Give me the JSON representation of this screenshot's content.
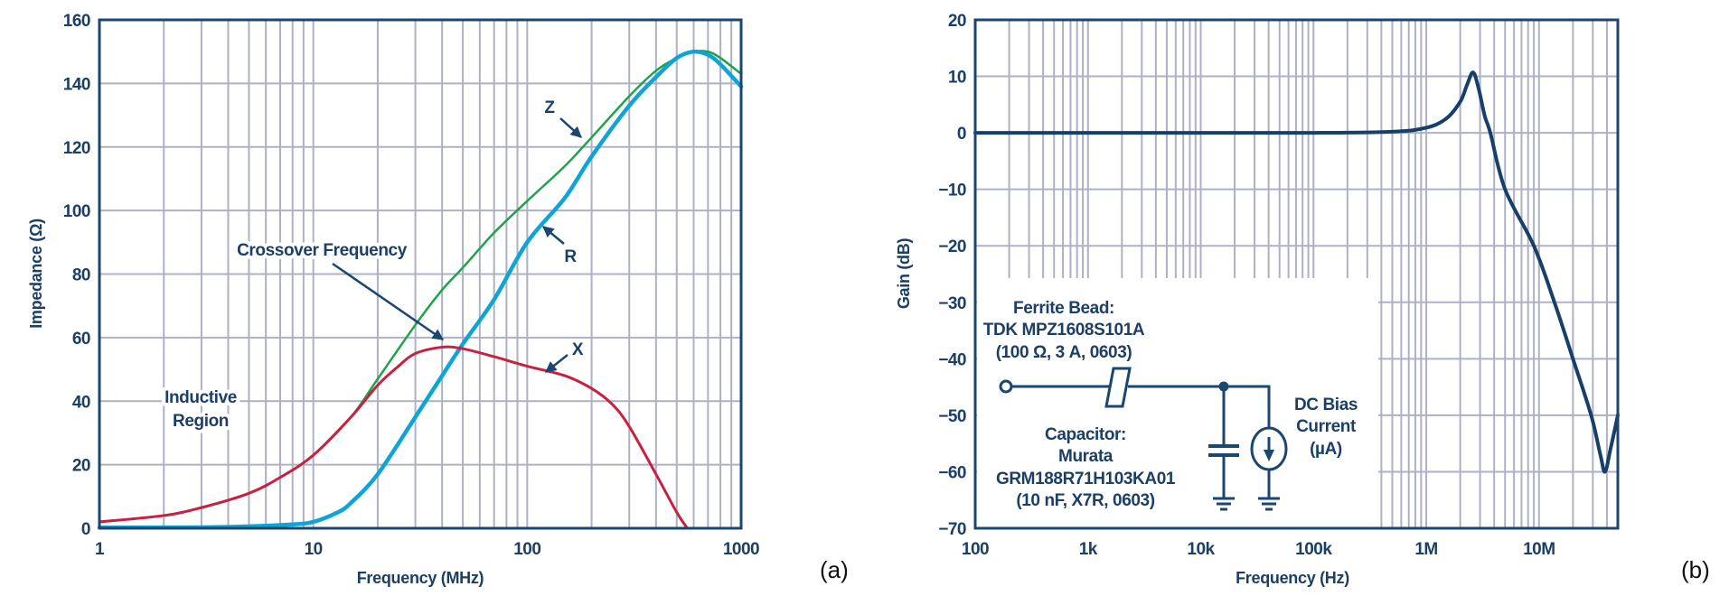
{
  "chart_data": [
    {
      "type": "line",
      "panel_label": "(a)",
      "xlabel": "Frequency (MHz)",
      "ylabel": "Impedance (Ω)",
      "xscale": "log",
      "xlim": [
        1,
        1000
      ],
      "ylim": [
        0,
        160
      ],
      "grid": true,
      "x_ticks": [
        "1",
        "10",
        "100",
        "1000"
      ],
      "y_ticks": [
        "0",
        "20",
        "40",
        "60",
        "80",
        "100",
        "120",
        "140",
        "160"
      ],
      "series": [
        {
          "name": "Z",
          "color": "#1fa34a",
          "points": [
            [
              1,
              2
            ],
            [
              2,
              4
            ],
            [
              3,
              6.5
            ],
            [
              5,
              11
            ],
            [
              7,
              16
            ],
            [
              10,
              23
            ],
            [
              15,
              35
            ],
            [
              20,
              47
            ],
            [
              30,
              64
            ],
            [
              40,
              75
            ],
            [
              50,
              82
            ],
            [
              70,
              93
            ],
            [
              100,
              103
            ],
            [
              150,
              114
            ],
            [
              200,
              123
            ],
            [
              300,
              136
            ],
            [
              400,
              144
            ],
            [
              500,
              148
            ],
            [
              600,
              150
            ],
            [
              700,
              150
            ],
            [
              800,
              148
            ],
            [
              1000,
              143
            ]
          ]
        },
        {
          "name": "R",
          "color": "#0ea5d6",
          "points": [
            [
              1,
              0.2
            ],
            [
              3,
              0.3
            ],
            [
              5,
              0.6
            ],
            [
              8,
              1.2
            ],
            [
              10,
              2
            ],
            [
              13,
              5
            ],
            [
              15,
              8
            ],
            [
              20,
              17
            ],
            [
              30,
              35
            ],
            [
              40,
              48
            ],
            [
              50,
              58
            ],
            [
              70,
              72
            ],
            [
              100,
              90
            ],
            [
              150,
              104
            ],
            [
              200,
              117
            ],
            [
              300,
              133
            ],
            [
              400,
              142
            ],
            [
              500,
              148
            ],
            [
              600,
              150
            ],
            [
              700,
              149
            ],
            [
              800,
              146
            ],
            [
              1000,
              139
            ]
          ]
        },
        {
          "name": "X",
          "color": "#c8203f",
          "points": [
            [
              1,
              2
            ],
            [
              2,
              4
            ],
            [
              3,
              6.5
            ],
            [
              5,
              11
            ],
            [
              7,
              16
            ],
            [
              10,
              23
            ],
            [
              15,
              35
            ],
            [
              20,
              45
            ],
            [
              25,
              51
            ],
            [
              30,
              55
            ],
            [
              40,
              57
            ],
            [
              50,
              56.5
            ],
            [
              70,
              54
            ],
            [
              100,
              51
            ],
            [
              150,
              48
            ],
            [
              200,
              44
            ],
            [
              250,
              39
            ],
            [
              300,
              32
            ],
            [
              400,
              17
            ],
            [
              500,
              5
            ],
            [
              560,
              0
            ]
          ]
        }
      ],
      "annotations": {
        "crossover": "Crossover Frequency",
        "inductive_line1": "Inductive",
        "inductive_line2": "Region",
        "z_label": "Z",
        "r_label": "R",
        "x_label": "X"
      }
    },
    {
      "type": "line",
      "panel_label": "(b)",
      "xlabel": "Frequency (Hz)",
      "ylabel": "Gain (dB)",
      "xscale": "log",
      "xlim": [
        100,
        50000000
      ],
      "ylim": [
        -70,
        20
      ],
      "grid": true,
      "x_ticks": [
        "100",
        "1k",
        "10k",
        "100k",
        "1M",
        "10M"
      ],
      "y_ticks": [
        "−70",
        "−60",
        "−50",
        "−40",
        "−30",
        "−20",
        "−10",
        "0",
        "10",
        "20"
      ],
      "series": [
        {
          "color": "#163f6a",
          "points": [
            [
              100,
              0
            ],
            [
              1000,
              0
            ],
            [
              10000,
              0
            ],
            [
              100000,
              0
            ],
            [
              500000,
              0.2
            ],
            [
              1000000,
              0.9
            ],
            [
              1500000,
              2.5
            ],
            [
              2000000,
              5.5
            ],
            [
              2300000,
              8.5
            ],
            [
              2600000,
              10.7
            ],
            [
              2900000,
              8
            ],
            [
              3300000,
              3
            ],
            [
              3700000,
              0
            ],
            [
              5000000,
              -10
            ],
            [
              9000000,
              -20
            ],
            [
              13700000,
              -30
            ],
            [
              20000000,
              -40
            ],
            [
              29000000,
              -50
            ],
            [
              35000000,
              -57
            ],
            [
              38500000,
              -60
            ],
            [
              43000000,
              -56
            ],
            [
              50000000,
              -50
            ]
          ]
        }
      ],
      "inset": {
        "bead_line1": "Ferrite Bead:",
        "bead_line2": "TDK MPZ1608S101A",
        "bead_line3": "(100 Ω, 3 A, 0603)",
        "cap_line1": "Capacitor:",
        "cap_line2": "Murata",
        "cap_line3": "GRM188R71H103KA01",
        "cap_line4": "(10 nF, X7R, 0603)",
        "bias_line1": "DC Bias",
        "bias_line2": "Current",
        "bias_line3": "(µA)"
      }
    }
  ]
}
